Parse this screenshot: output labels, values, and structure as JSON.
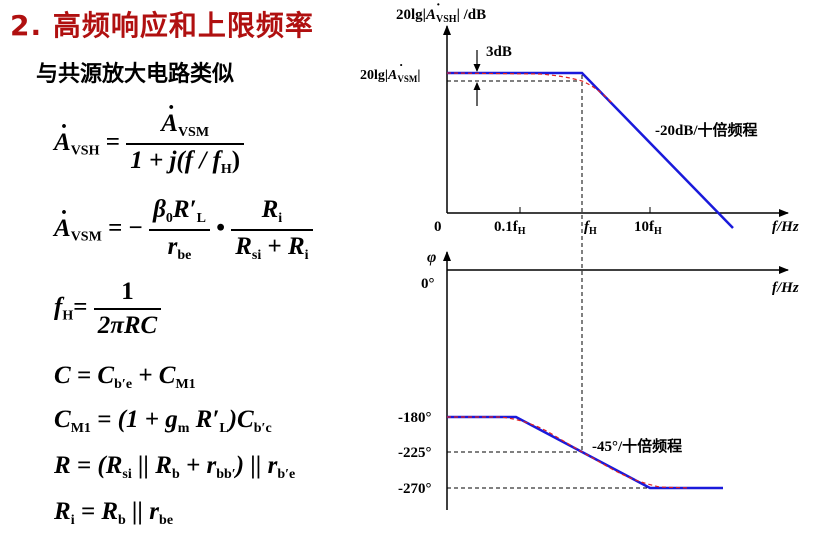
{
  "title": "2. 高频响应和上限频率",
  "subtitle": "与共源放大电路类似",
  "equations": {
    "avsh_lhs": "A",
    "avsh_lhs_sub": "VSH",
    "avsh_eq": "=",
    "avsh_num": "A",
    "avsh_num_sub": "VSM",
    "avsh_den": "1 + j(f / f",
    "avsh_den_sub": "H",
    "avsh_den_close": ")",
    "avsm_lhs": "A",
    "avsm_lhs_sub": "VSM",
    "avsm_eq": "= −",
    "avsm_num1": "β",
    "avsm_num1_sub": "0",
    "avsm_num1_b": "R′",
    "avsm_num1_b_sub": "L",
    "avsm_den1": "r",
    "avsm_den1_sub": "be",
    "avsm_dot": "•",
    "avsm_num2": "R",
    "avsm_num2_sub": "i",
    "avsm_den2_a": "R",
    "avsm_den2_a_sub": "si",
    "avsm_den2_plus": "+",
    "avsm_den2_b": "R",
    "avsm_den2_b_sub": "i",
    "fh_lhs": "f",
    "fh_lhs_sub": "H",
    "fh_eq": "=",
    "fh_num": "1",
    "fh_den": "2πRC",
    "c_line": "C = C",
    "c_sub1": "b′e",
    "c_plus": "+ C",
    "c_sub2": "M1",
    "cm1_a": "C",
    "cm1_sub1": "M1",
    "cm1_b": "= (1 + g",
    "cm1_sub2": "m",
    "cm1_c": "R′",
    "cm1_sub3": "L",
    "cm1_d": ")C",
    "cm1_sub4": "b′c",
    "r_a": "R = (R",
    "r_sub1": "si",
    "r_b": "|| R",
    "r_sub2": "b",
    "r_c": "+ r",
    "r_sub3": "bb′",
    "r_d": ") || r",
    "r_sub4": "b′e",
    "ri_a": "R",
    "ri_sub1": "i",
    "ri_b": "= R",
    "ri_sub2": "b",
    "ri_c": "|| r",
    "ri_sub3": "be"
  },
  "mag_plot": {
    "ylabel_prefix": "20lg|",
    "ylabel_A": "A",
    "ylabel_sub": "VSH",
    "ylabel_suffix": "| /dB",
    "level_prefix": "20lg|",
    "level_A": "A",
    "level_sub": "VSM",
    "level_suffix": "|",
    "annot_3db": "3dB",
    "slope_label": "-20dB/十倍频程",
    "origin": "0",
    "tick_01": "0.1f",
    "tick_01_sub": "H",
    "tick_fh": "f",
    "tick_fh_sub": "H",
    "tick_10": "10f",
    "tick_10_sub": "H",
    "xaxis_label": "f/Hz"
  },
  "phase_plot": {
    "ylabel": "φ",
    "tick_0": "0°",
    "tick_180": "-180°",
    "tick_225": "-225°",
    "tick_270": "-270°",
    "slope_label": "-45°/十倍频程",
    "xaxis_label": "f/Hz"
  },
  "colors": {
    "title": "#b01010",
    "asymptote": "#1a1adb",
    "actual": "#e02020"
  }
}
